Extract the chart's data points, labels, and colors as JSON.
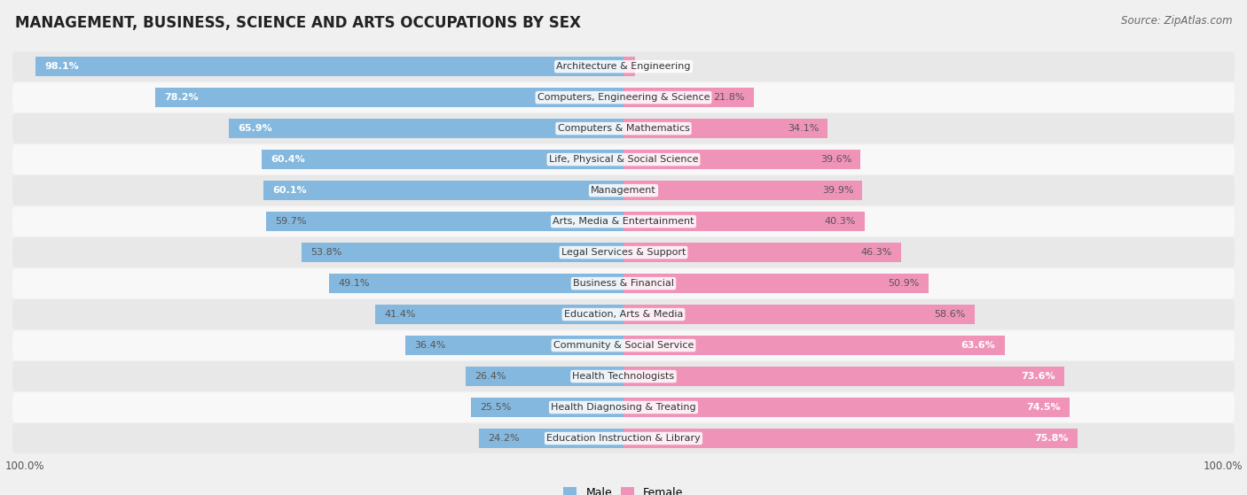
{
  "title": "MANAGEMENT, BUSINESS, SCIENCE AND ARTS OCCUPATIONS BY SEX",
  "source": "Source: ZipAtlas.com",
  "categories": [
    "Architecture & Engineering",
    "Computers, Engineering & Science",
    "Computers & Mathematics",
    "Life, Physical & Social Science",
    "Management",
    "Arts, Media & Entertainment",
    "Legal Services & Support",
    "Business & Financial",
    "Education, Arts & Media",
    "Community & Social Service",
    "Health Technologists",
    "Health Diagnosing & Treating",
    "Education Instruction & Library"
  ],
  "male_pct": [
    98.1,
    78.2,
    65.9,
    60.4,
    60.1,
    59.7,
    53.8,
    49.1,
    41.4,
    36.4,
    26.4,
    25.5,
    24.2
  ],
  "female_pct": [
    1.9,
    21.8,
    34.1,
    39.6,
    39.9,
    40.3,
    46.3,
    50.9,
    58.6,
    63.6,
    73.6,
    74.5,
    75.8
  ],
  "male_color": "#85b8de",
  "female_color": "#f093b8",
  "bg_color": "#f0f0f0",
  "row_bg_even": "#e8e8e8",
  "row_bg_odd": "#f8f8f8",
  "title_fontsize": 12,
  "source_fontsize": 8.5,
  "label_fontsize": 8,
  "bar_label_fontsize": 8,
  "legend_fontsize": 9,
  "axis_label_fontsize": 8.5
}
